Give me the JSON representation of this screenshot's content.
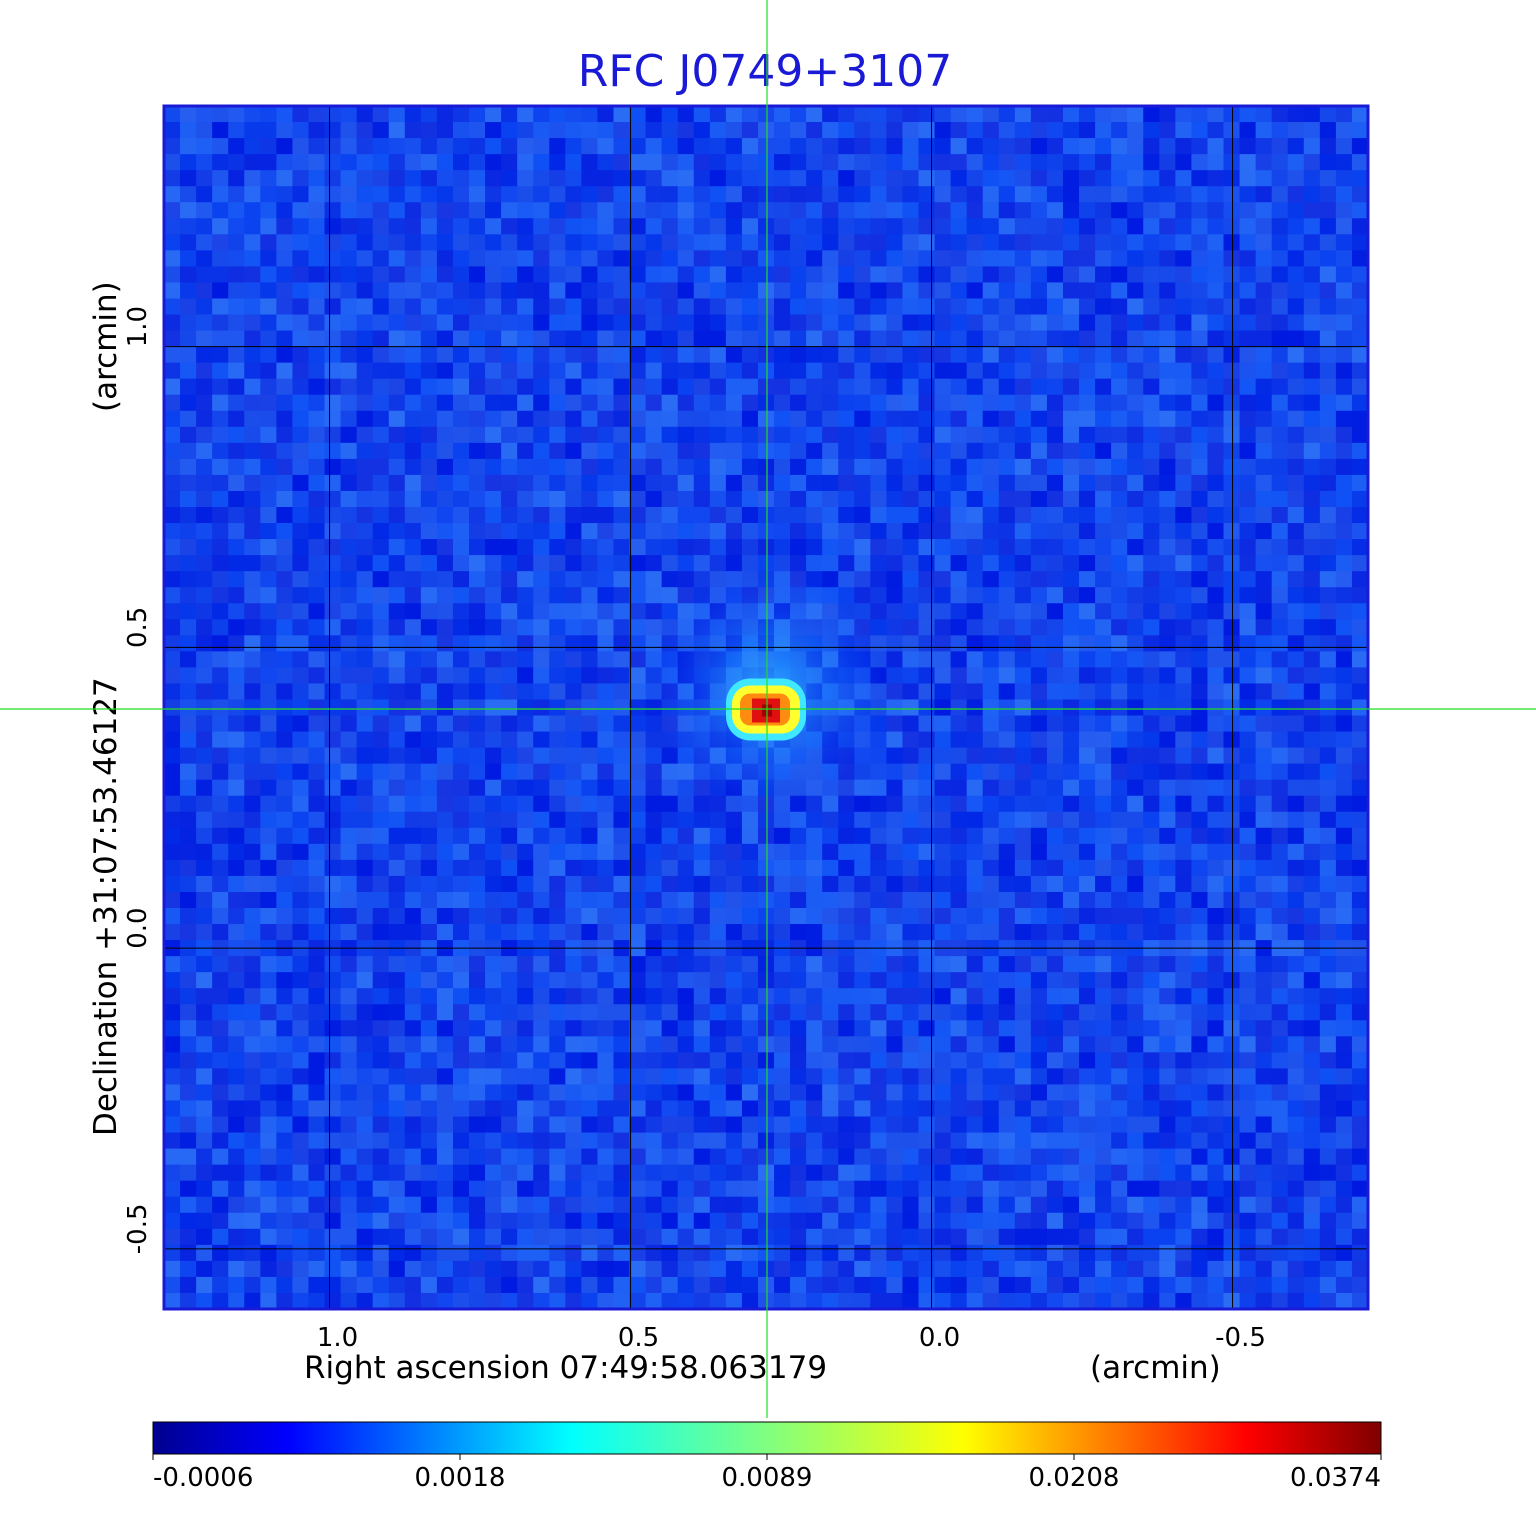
{
  "chart_data": {
    "type": "heatmap",
    "title": "RFC J0749+3107",
    "xlabel": "Right ascension  07:49:58.063179",
    "xunit": "(arcmin)",
    "ylabel": "Declination  +31:07:53.46127",
    "yunit": "(arcmin)",
    "xlim": [
      1.275,
      -0.725
    ],
    "ylim": [
      -0.6,
      1.4
    ],
    "x_ticks": [
      "1.0",
      "0.5",
      "0.0",
      "-0.5"
    ],
    "x_tick_values": [
      1.0,
      0.5,
      0.0,
      -0.5
    ],
    "y_ticks": [
      "1.0",
      "0.5",
      "0.0",
      "-0.5"
    ],
    "y_tick_values": [
      1.0,
      0.5,
      0.0,
      -0.5
    ],
    "grid": true,
    "crosshair": {
      "x": 0.27,
      "y": 0.395,
      "color": "#22dd22"
    },
    "source_peak": {
      "x": 0.275,
      "y": 0.395,
      "value": 0.0374
    },
    "colormap": "jet",
    "colorbar": {
      "ticks": [
        "-0.0006",
        "0.0018",
        "0.0089",
        "0.0208",
        "0.0374"
      ],
      "tick_values": [
        -0.0006,
        0.0018,
        0.0089,
        0.0208,
        0.0374
      ]
    },
    "colors": {
      "title": "#1a1ad6",
      "grid": "#000000",
      "frame": "#1a1ad6",
      "crosshair": "#22dd22"
    }
  }
}
